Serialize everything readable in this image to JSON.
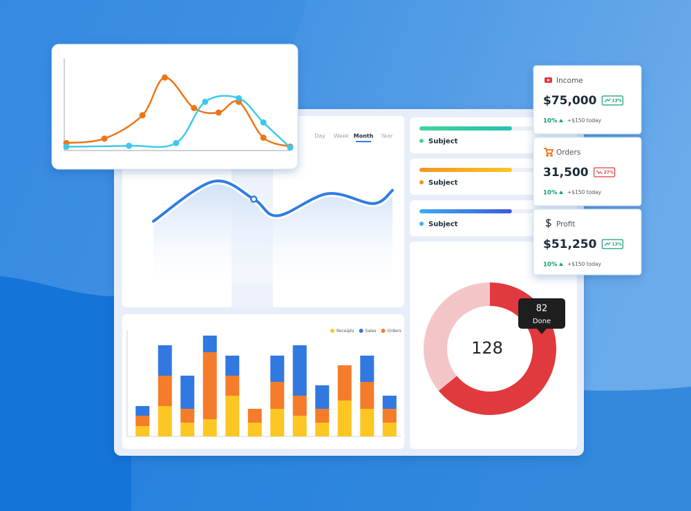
{
  "overlay_chart": {
    "type": "line",
    "xlim": [
      0,
      10
    ],
    "ylim": [
      0,
      100
    ],
    "series": [
      {
        "color": "#f07414",
        "x": [
          0,
          1.7,
          3.4,
          4.4,
          5.7,
          6.8,
          7.7,
          8.8,
          10
        ],
        "values": [
          6,
          11,
          37,
          79,
          45,
          40,
          52,
          12,
          2
        ]
      },
      {
        "color": "#3ec8ee",
        "x": [
          0,
          2.8,
          4.9,
          6.2,
          7.7,
          8.8,
          10
        ],
        "values": [
          2,
          3,
          6,
          52,
          56,
          29,
          1
        ]
      }
    ]
  },
  "main_chart": {
    "type": "line",
    "tabs": [
      "Day",
      "Week",
      "Month",
      "Year"
    ],
    "active_tab": "Month",
    "xlim": [
      0,
      100
    ],
    "ylim": [
      0,
      100
    ],
    "highlight": 2,
    "series": [
      {
        "color": "#2f7de1",
        "x": [
          0,
          25,
          42,
          52,
          73,
          92,
          100
        ],
        "values": [
          56,
          92,
          76,
          61,
          81,
          72,
          84
        ]
      }
    ]
  },
  "bar_chart": {
    "type": "bar",
    "stacked": true,
    "ylim": [
      0,
      150
    ],
    "categories": [
      null,
      null,
      null,
      null,
      null,
      null,
      null,
      null,
      null,
      null,
      null,
      null
    ],
    "series": [
      {
        "name": "Receipts",
        "color": "#fcc623",
        "values": [
          15,
          44,
          20,
          25,
          59,
          20,
          40,
          30,
          20,
          52,
          40,
          20
        ]
      },
      {
        "name": "Sales",
        "color": "#3178e0",
        "values": [
          14,
          44,
          48,
          24,
          29,
          0,
          38,
          73,
          34,
          0,
          38,
          19
        ]
      },
      {
        "name": "Orders",
        "color": "#f47c2a",
        "values": [
          15,
          44,
          20,
          97,
          29,
          20,
          39,
          29,
          20,
          51,
          39,
          20
        ]
      }
    ]
  },
  "progress": [
    {
      "label": "Subject",
      "value": 60,
      "colors": [
        "#3fd39a",
        "#2bbfb3"
      ]
    },
    {
      "label": "Subject",
      "value": 60,
      "colors": [
        "#f7931e",
        "#fcc623"
      ]
    },
    {
      "label": "Subject",
      "value": 60,
      "colors": [
        "#3fa9f5",
        "#3b5bdb"
      ]
    }
  ],
  "donut_chart": {
    "type": "pie",
    "center_label": 128,
    "values": [
      82,
      46
    ],
    "colors": [
      "#e03a3e",
      "#f4c5c7"
    ],
    "tooltip_label": "Done"
  },
  "stats": [
    {
      "label": "Income",
      "value": "$75,000",
      "badge": "13%",
      "trend": "up",
      "change": "10%",
      "delta": "+$150 today"
    },
    {
      "label": "Orders",
      "value": "31,500",
      "badge": "27%",
      "trend": "down",
      "change": "10%",
      "delta": "+$150 today"
    },
    {
      "label": "Profit",
      "value": "$51,250",
      "badge": "13%",
      "trend": "up",
      "change": "10%",
      "delta": "+$150 today"
    }
  ]
}
